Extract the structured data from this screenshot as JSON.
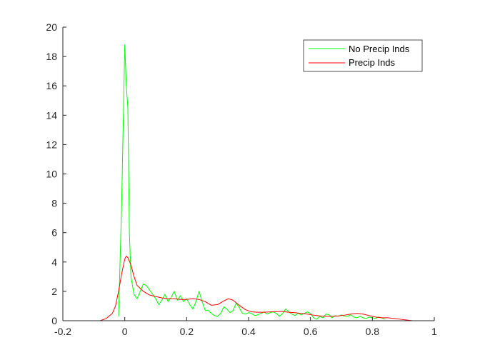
{
  "chart_data": {
    "type": "line",
    "title": "",
    "xlabel": "",
    "ylabel": "",
    "xlim": [
      -0.2,
      1.0
    ],
    "ylim": [
      0,
      20
    ],
    "xticks": [
      -0.2,
      0,
      0.2,
      0.4,
      0.6,
      0.8,
      1.0
    ],
    "xtick_labels": [
      "-0.2",
      "0",
      "0.2",
      "0.4",
      "0.6",
      "0.8",
      "1"
    ],
    "yticks": [
      0,
      2,
      4,
      6,
      8,
      10,
      12,
      14,
      16,
      18,
      20
    ],
    "ytick_labels": [
      "0",
      "2",
      "4",
      "6",
      "8",
      "10",
      "12",
      "14",
      "16",
      "18",
      "20"
    ],
    "grid": false,
    "legend_position": "top-right",
    "series": [
      {
        "name": "No Precip Inds",
        "color": "#00ff00",
        "points": [
          [
            -0.02,
            0.3
          ],
          [
            -0.01,
            8.0
          ],
          [
            0.0,
            18.8
          ],
          [
            0.005,
            16.0
          ],
          [
            0.01,
            14.5
          ],
          [
            0.015,
            6.0
          ],
          [
            0.02,
            3.0
          ],
          [
            0.03,
            1.8
          ],
          [
            0.04,
            1.5
          ],
          [
            0.05,
            2.0
          ],
          [
            0.06,
            2.5
          ],
          [
            0.07,
            2.4
          ],
          [
            0.08,
            2.1
          ],
          [
            0.09,
            1.8
          ],
          [
            0.1,
            1.5
          ],
          [
            0.11,
            1.1
          ],
          [
            0.12,
            1.4
          ],
          [
            0.13,
            1.8
          ],
          [
            0.14,
            1.3
          ],
          [
            0.15,
            1.6
          ],
          [
            0.16,
            2.0
          ],
          [
            0.17,
            1.4
          ],
          [
            0.18,
            1.7
          ],
          [
            0.19,
            1.3
          ],
          [
            0.2,
            1.5
          ],
          [
            0.21,
            1.1
          ],
          [
            0.22,
            0.8
          ],
          [
            0.23,
            1.3
          ],
          [
            0.24,
            2.0
          ],
          [
            0.25,
            1.3
          ],
          [
            0.26,
            0.7
          ],
          [
            0.27,
            0.7
          ],
          [
            0.28,
            0.5
          ],
          [
            0.29,
            0.35
          ],
          [
            0.3,
            0.3
          ],
          [
            0.31,
            0.5
          ],
          [
            0.32,
            0.95
          ],
          [
            0.33,
            0.8
          ],
          [
            0.34,
            0.55
          ],
          [
            0.35,
            0.7
          ],
          [
            0.36,
            1.2
          ],
          [
            0.37,
            0.9
          ],
          [
            0.38,
            0.5
          ],
          [
            0.39,
            0.45
          ],
          [
            0.4,
            0.55
          ],
          [
            0.41,
            0.5
          ],
          [
            0.42,
            0.35
          ],
          [
            0.43,
            0.4
          ],
          [
            0.44,
            0.5
          ],
          [
            0.45,
            0.6
          ],
          [
            0.46,
            0.45
          ],
          [
            0.47,
            0.55
          ],
          [
            0.48,
            0.6
          ],
          [
            0.49,
            0.5
          ],
          [
            0.5,
            0.3
          ],
          [
            0.51,
            0.5
          ],
          [
            0.52,
            0.8
          ],
          [
            0.53,
            0.6
          ],
          [
            0.54,
            0.45
          ],
          [
            0.55,
            0.35
          ],
          [
            0.56,
            0.5
          ],
          [
            0.57,
            0.4
          ],
          [
            0.58,
            0.5
          ],
          [
            0.59,
            0.6
          ],
          [
            0.6,
            0.5
          ],
          [
            0.61,
            0.2
          ],
          [
            0.62,
            0.1
          ],
          [
            0.63,
            0.3
          ],
          [
            0.64,
            0.2
          ],
          [
            0.65,
            0.45
          ],
          [
            0.66,
            0.4
          ],
          [
            0.67,
            0.2
          ],
          [
            0.68,
            0.35
          ],
          [
            0.69,
            0.3
          ],
          [
            0.7,
            0.4
          ],
          [
            0.71,
            0.3
          ],
          [
            0.72,
            0.3
          ],
          [
            0.73,
            0.4
          ],
          [
            0.74,
            0.25
          ],
          [
            0.75,
            0.2
          ],
          [
            0.76,
            0.3
          ],
          [
            0.77,
            0.2
          ],
          [
            0.78,
            0.15
          ],
          [
            0.79,
            0.25
          ],
          [
            0.8,
            0.2
          ],
          [
            0.81,
            0.15
          ],
          [
            0.82,
            0.25
          ],
          [
            0.83,
            0.2
          ],
          [
            0.84,
            0.1
          ]
        ]
      },
      {
        "name": "Precip Inds",
        "color": "#ff0000",
        "points": [
          [
            -0.08,
            0.0
          ],
          [
            -0.06,
            0.15
          ],
          [
            -0.04,
            0.5
          ],
          [
            -0.03,
            1.0
          ],
          [
            -0.02,
            2.0
          ],
          [
            -0.01,
            3.2
          ],
          [
            0.0,
            4.2
          ],
          [
            0.005,
            4.4
          ],
          [
            0.01,
            4.3
          ],
          [
            0.02,
            3.8
          ],
          [
            0.03,
            3.0
          ],
          [
            0.04,
            2.4
          ],
          [
            0.05,
            2.2
          ],
          [
            0.06,
            2.0
          ],
          [
            0.08,
            1.75
          ],
          [
            0.1,
            1.65
          ],
          [
            0.12,
            1.55
          ],
          [
            0.14,
            1.5
          ],
          [
            0.16,
            1.5
          ],
          [
            0.18,
            1.45
          ],
          [
            0.2,
            1.45
          ],
          [
            0.22,
            1.5
          ],
          [
            0.24,
            1.45
          ],
          [
            0.26,
            1.3
          ],
          [
            0.28,
            1.05
          ],
          [
            0.3,
            1.1
          ],
          [
            0.32,
            1.35
          ],
          [
            0.335,
            1.5
          ],
          [
            0.35,
            1.4
          ],
          [
            0.37,
            1.05
          ],
          [
            0.39,
            0.75
          ],
          [
            0.41,
            0.6
          ],
          [
            0.43,
            0.58
          ],
          [
            0.45,
            0.58
          ],
          [
            0.47,
            0.6
          ],
          [
            0.49,
            0.62
          ],
          [
            0.51,
            0.62
          ],
          [
            0.53,
            0.58
          ],
          [
            0.55,
            0.55
          ],
          [
            0.57,
            0.5
          ],
          [
            0.59,
            0.45
          ],
          [
            0.61,
            0.38
          ],
          [
            0.63,
            0.33
          ],
          [
            0.65,
            0.3
          ],
          [
            0.67,
            0.3
          ],
          [
            0.69,
            0.33
          ],
          [
            0.71,
            0.38
          ],
          [
            0.73,
            0.45
          ],
          [
            0.75,
            0.5
          ],
          [
            0.77,
            0.45
          ],
          [
            0.79,
            0.35
          ],
          [
            0.81,
            0.25
          ],
          [
            0.83,
            0.2
          ],
          [
            0.85,
            0.2
          ],
          [
            0.87,
            0.15
          ],
          [
            0.89,
            0.1
          ],
          [
            0.91,
            0.05
          ],
          [
            0.93,
            0.0
          ]
        ]
      }
    ]
  }
}
